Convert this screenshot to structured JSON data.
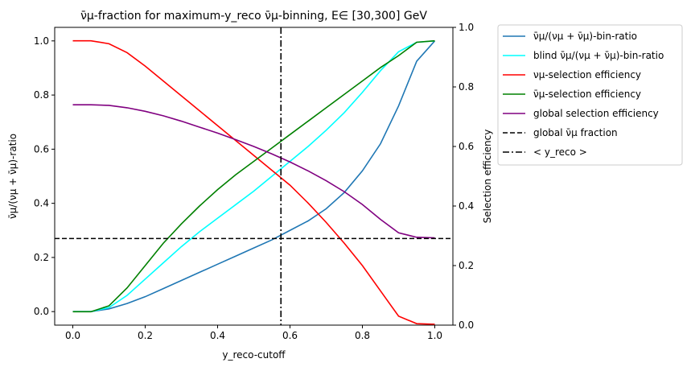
{
  "chart_data": {
    "type": "line",
    "title": "ν̄μ-fraction for maximum-y_reco ν̄μ-binning, E∈ [30,300] GeV",
    "xlabel": "y_reco-cutoff",
    "ylabel_left": "ν̄μ/(νμ + ν̄μ)-ratio",
    "ylabel_right": "Selection efficiency",
    "xlim": [
      -0.05,
      1.05
    ],
    "ylim_left": [
      -0.05,
      1.05
    ],
    "ylim_right": [
      0.0,
      1.0
    ],
    "x_ticks": [
      0.0,
      0.2,
      0.4,
      0.6,
      0.8,
      1.0
    ],
    "y_ticks_left": [
      0.0,
      0.2,
      0.4,
      0.6,
      0.8,
      1.0
    ],
    "y_ticks_right": [
      0.0,
      0.2,
      0.4,
      0.6,
      0.8,
      1.0
    ],
    "x": [
      0.0,
      0.05,
      0.1,
      0.15,
      0.2,
      0.25,
      0.3,
      0.35,
      0.4,
      0.45,
      0.5,
      0.55,
      0.6,
      0.65,
      0.7,
      0.75,
      0.8,
      0.85,
      0.9,
      0.95,
      1.0
    ],
    "series": [
      {
        "name": "ν̄μ/(νμ + ν̄μ)-bin-ratio",
        "axis": "left",
        "color": "#1f77b4",
        "style": "solid",
        "values": [
          0.0,
          0.0,
          0.01,
          0.03,
          0.055,
          0.085,
          0.115,
          0.145,
          0.175,
          0.205,
          0.235,
          0.265,
          0.3,
          0.335,
          0.38,
          0.44,
          0.52,
          0.62,
          0.76,
          0.925,
          1.0
        ]
      },
      {
        "name": "blind ν̄μ/(νμ + ν̄μ)-bin-ratio",
        "axis": "left",
        "color": "#00ffff",
        "style": "solid",
        "values": [
          0.0,
          0.0,
          0.015,
          0.06,
          0.12,
          0.18,
          0.24,
          0.295,
          0.345,
          0.395,
          0.445,
          0.5,
          0.555,
          0.61,
          0.67,
          0.735,
          0.81,
          0.89,
          0.96,
          0.995,
          1.0
        ]
      },
      {
        "name": "νμ-selection efficiency",
        "axis": "right",
        "color": "#ff0000",
        "style": "solid",
        "values": [
          0.955,
          0.955,
          0.945,
          0.915,
          0.87,
          0.82,
          0.77,
          0.72,
          0.67,
          0.62,
          0.57,
          0.52,
          0.47,
          0.41,
          0.345,
          0.275,
          0.2,
          0.115,
          0.03,
          0.005,
          0.003
        ]
      },
      {
        "name": "ν̄μ-selection efficiency",
        "axis": "right",
        "color": "#008000",
        "style": "solid",
        "values": [
          0.045,
          0.045,
          0.065,
          0.125,
          0.2,
          0.275,
          0.34,
          0.4,
          0.455,
          0.505,
          0.55,
          0.595,
          0.64,
          0.685,
          0.73,
          0.775,
          0.82,
          0.865,
          0.905,
          0.95,
          0.955
        ]
      },
      {
        "name": "global selection efficiency",
        "axis": "right",
        "color": "#800080",
        "style": "solid",
        "values": [
          0.74,
          0.74,
          0.738,
          0.73,
          0.718,
          0.703,
          0.685,
          0.665,
          0.645,
          0.623,
          0.6,
          0.575,
          0.548,
          0.518,
          0.485,
          0.448,
          0.405,
          0.355,
          0.31,
          0.295,
          0.293
        ]
      },
      {
        "name": "global ν̄μ fraction",
        "axis": "left",
        "color": "#000000",
        "style": "dashed",
        "hline": 0.27
      },
      {
        "name": "< y_reco >",
        "axis": "left",
        "color": "#000000",
        "style": "dashdot",
        "vline": 0.575
      }
    ],
    "legend_position": "outside-upper-right"
  }
}
